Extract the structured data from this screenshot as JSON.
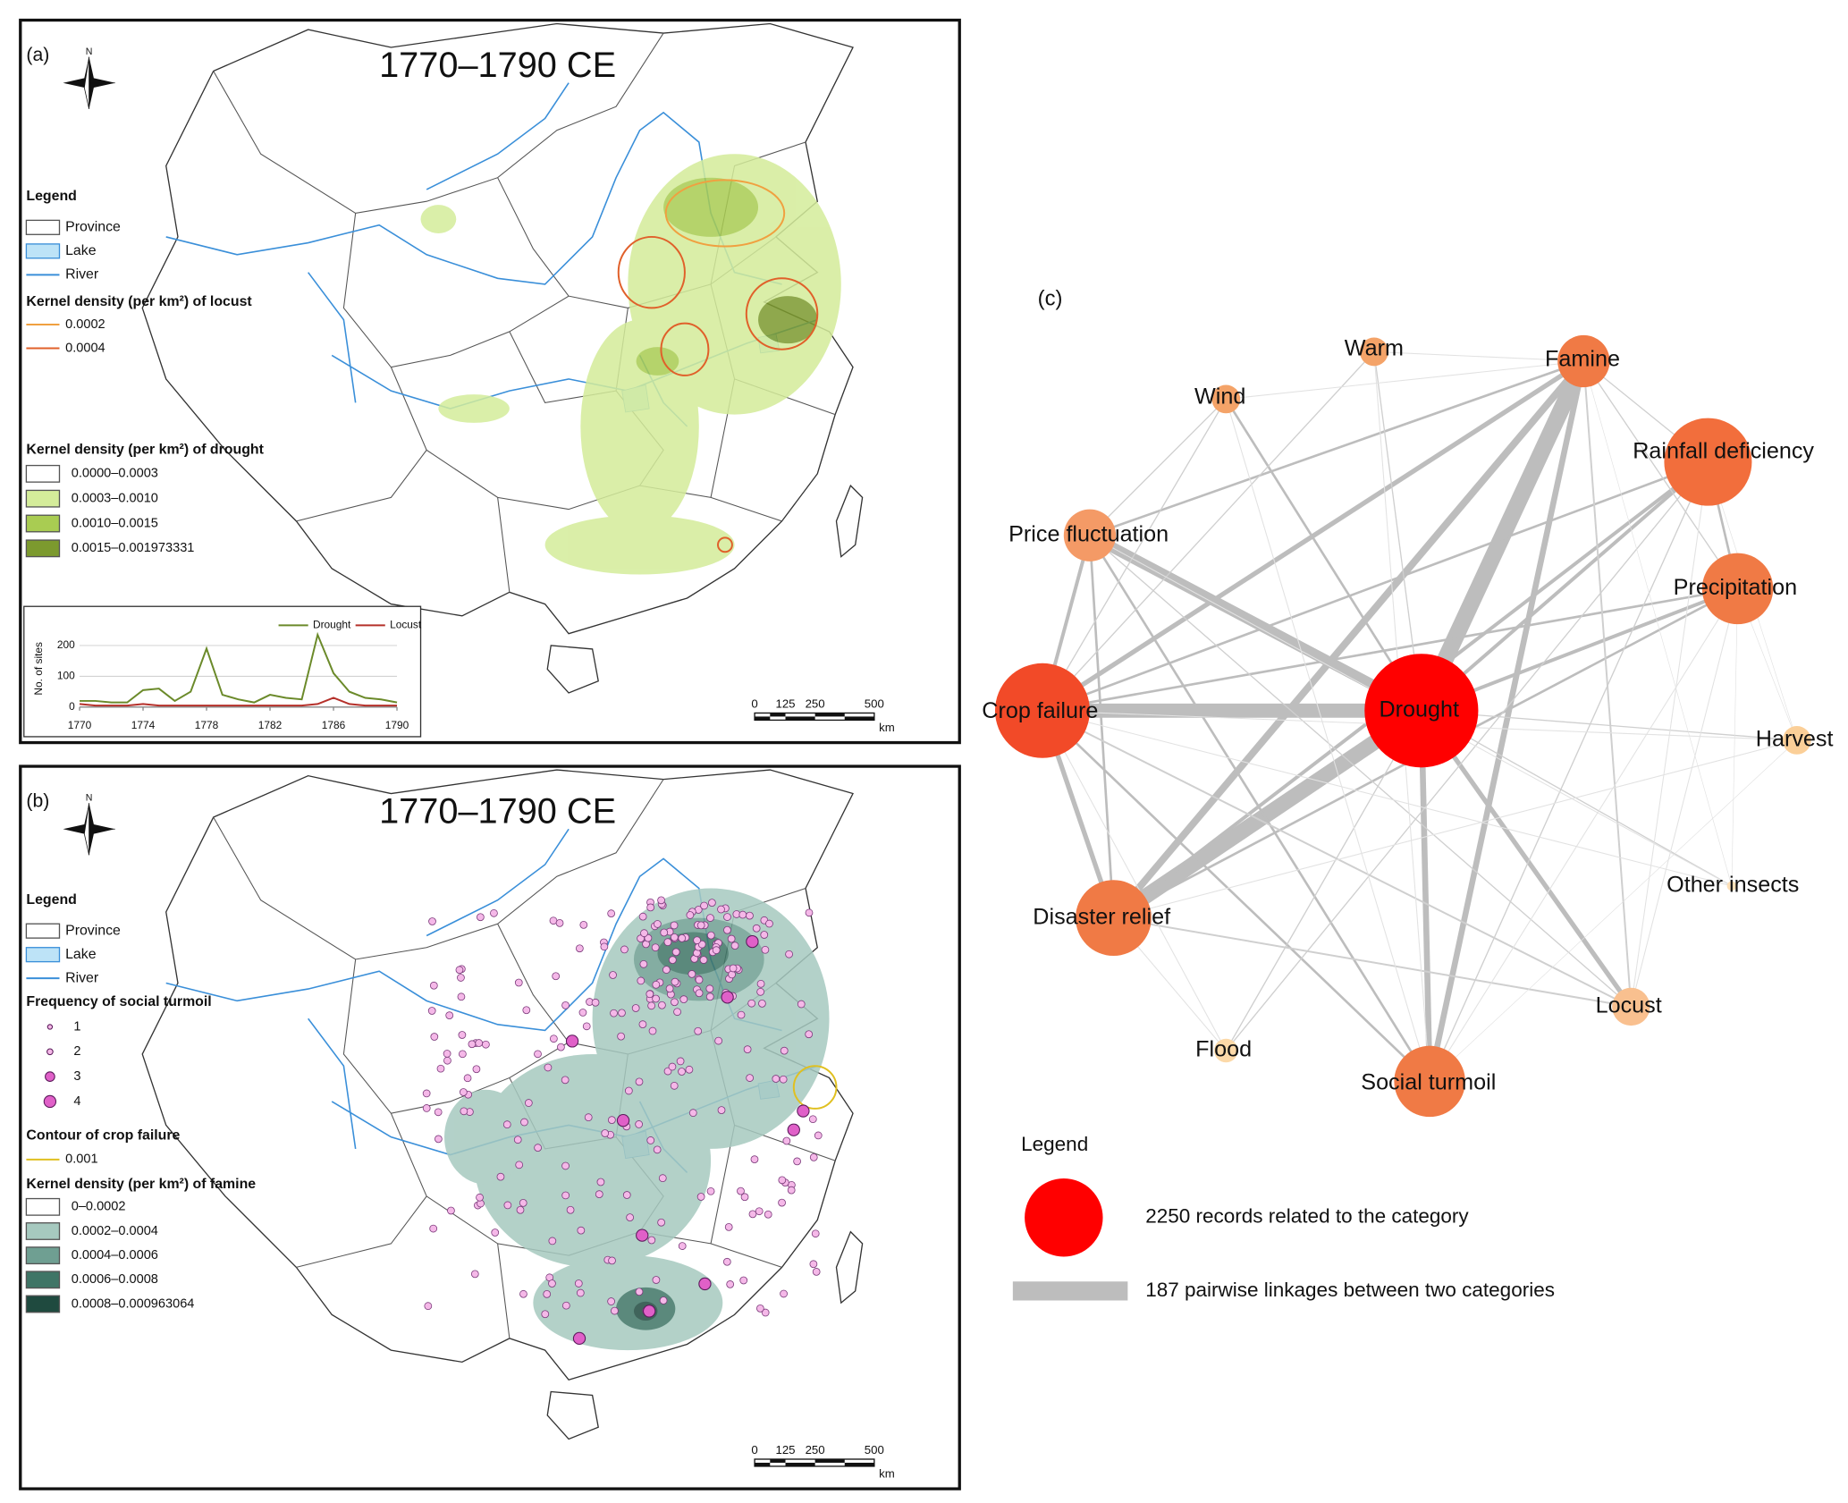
{
  "panel_a": {
    "label": "(a)",
    "title": "1770–1790 CE",
    "compass": "N",
    "legend": {
      "title": "Legend",
      "items": [
        "Province",
        "Lake",
        "River"
      ],
      "locust_title": "Kernel density (per km²) of locust",
      "locust_levels": [
        "0.0002",
        "0.0004"
      ],
      "drought_title": "Kernel density (per km²) of drought",
      "drought_classes": [
        "0.0000–0.0003",
        "0.0003–0.0010",
        "0.0010–0.0015",
        "0.0015–0.001973331"
      ]
    },
    "scale_bar": {
      "ticks": [
        "0",
        "125",
        "250",
        "500"
      ],
      "unit": "km"
    }
  },
  "chart_data": {
    "type": "line",
    "ylabel": "No. of sites",
    "x": [
      1770,
      1771,
      1772,
      1773,
      1774,
      1775,
      1776,
      1777,
      1778,
      1779,
      1780,
      1781,
      1782,
      1783,
      1784,
      1785,
      1786,
      1787,
      1788,
      1789,
      1790
    ],
    "series": [
      {
        "name": "Drought",
        "color": "#6b8a2a",
        "values": [
          20,
          20,
          15,
          15,
          55,
          60,
          20,
          50,
          190,
          40,
          25,
          15,
          40,
          30,
          25,
          235,
          110,
          50,
          30,
          25,
          15
        ]
      },
      {
        "name": "Locust",
        "color": "#b5302a",
        "values": [
          10,
          5,
          5,
          5,
          10,
          5,
          5,
          5,
          5,
          5,
          5,
          5,
          5,
          5,
          5,
          10,
          30,
          10,
          5,
          5,
          5
        ]
      }
    ],
    "xlim": [
      1770,
      1790
    ],
    "xticks": [
      1770,
      1774,
      1778,
      1782,
      1786,
      1790
    ],
    "ylim": [
      0,
      250
    ],
    "yticks": [
      0,
      100,
      200
    ],
    "grid": true
  },
  "panel_b": {
    "label": "(b)",
    "title": "1770–1790 CE",
    "compass": "N",
    "legend": {
      "title": "Legend",
      "items": [
        "Province",
        "Lake",
        "River"
      ],
      "turmoil_title": "Frequency of social turmoil",
      "turmoil_levels": [
        "1",
        "2",
        "3",
        "4"
      ],
      "crop_title": "Contour of crop failure",
      "crop_levels": [
        "0.001"
      ],
      "famine_title": "Kernel density (per km²) of famine",
      "famine_classes": [
        "0–0.0002",
        "0.0002–0.0004",
        "0.0004–0.0006",
        "0.0006–0.0008",
        "0.0008–0.000963064"
      ]
    },
    "scale_bar": {
      "ticks": [
        "0",
        "125",
        "250",
        "500"
      ],
      "unit": "km"
    }
  },
  "panel_c": {
    "label": "(c)",
    "nodes": [
      "Warm",
      "Famine",
      "Wind",
      "Rainfall deficiency",
      "Price fluctuation",
      "Precipitation",
      "Crop failure",
      "Drought",
      "Harvest",
      "Other insects",
      "Disaster relief",
      "Locust",
      "Flood",
      "Social turmoil"
    ],
    "legend": {
      "title": "Legend",
      "node_size": "2250 records related to the category",
      "edge_width": "187 pairwise linkages between two categories"
    }
  }
}
